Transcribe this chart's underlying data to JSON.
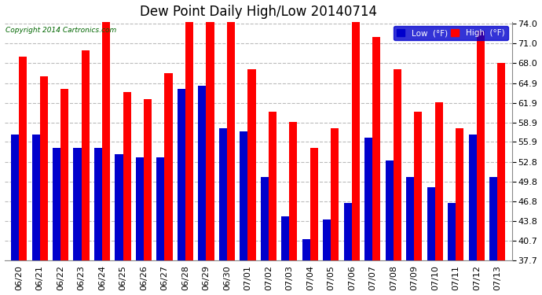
{
  "title": "Dew Point Daily High/Low 20140714",
  "copyright": "Copyright 2014 Cartronics.com",
  "yticks": [
    37.7,
    40.7,
    43.8,
    46.8,
    49.8,
    52.8,
    55.9,
    58.9,
    61.9,
    64.9,
    68.0,
    71.0,
    74.0
  ],
  "dates": [
    "06/20",
    "06/21",
    "06/22",
    "06/23",
    "06/24",
    "06/25",
    "06/26",
    "06/27",
    "06/28",
    "06/29",
    "06/30",
    "07/01",
    "07/02",
    "07/03",
    "07/04",
    "07/05",
    "07/06",
    "07/07",
    "07/08",
    "07/09",
    "07/10",
    "07/11",
    "07/12",
    "07/13"
  ],
  "high": [
    69.0,
    66.0,
    64.0,
    70.0,
    75.0,
    63.5,
    62.5,
    66.5,
    74.5,
    74.5,
    75.0,
    67.0,
    60.5,
    59.0,
    55.0,
    58.0,
    75.0,
    72.0,
    67.0,
    60.5,
    62.0,
    58.0,
    73.0,
    68.0
  ],
  "low": [
    57.0,
    57.0,
    55.0,
    55.0,
    55.0,
    54.0,
    53.5,
    53.5,
    64.0,
    64.5,
    58.0,
    57.5,
    50.5,
    44.5,
    41.0,
    44.0,
    46.5,
    56.5,
    53.0,
    50.5,
    49.0,
    46.5,
    57.0,
    50.5
  ],
  "high_color": "#ff0000",
  "low_color": "#0000cc",
  "bg_color": "#ffffff",
  "grid_color": "#bbbbbb",
  "ymin": 37.7,
  "ymax": 74.0,
  "title_fontsize": 12,
  "tick_fontsize": 8,
  "legend_high_label": "High  (°F)",
  "legend_low_label": "Low  (°F)"
}
